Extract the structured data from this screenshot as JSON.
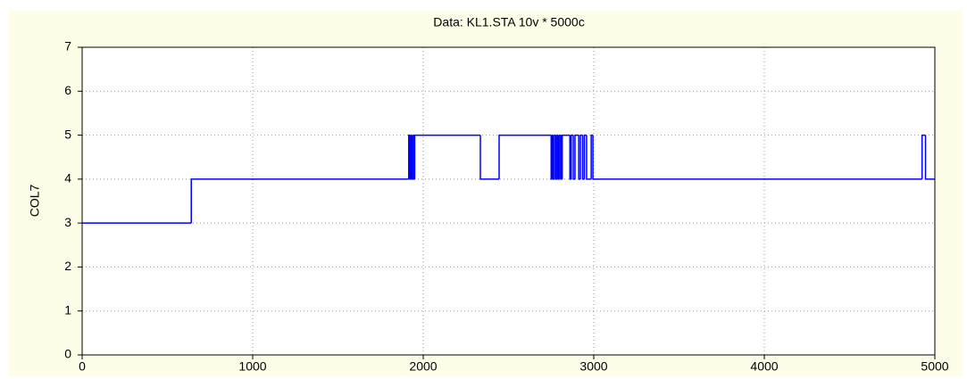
{
  "chart_data": {
    "type": "line",
    "step": "post",
    "title": "Data: KL1.STA 10v * 5000c",
    "y_label": "COL7",
    "color": "#0000ff",
    "x": [
      0,
      640,
      1915,
      1922,
      1928,
      1935,
      1942,
      1947,
      1950,
      2335,
      2445,
      2750,
      2756,
      2762,
      2770,
      2778,
      2785,
      2792,
      2800,
      2808,
      2815,
      2860,
      2868,
      2880,
      2890,
      2912,
      2922,
      2935,
      2945,
      2958,
      2985,
      2995,
      4925,
      4945,
      5000
    ],
    "values": [
      3,
      4,
      5,
      4,
      5,
      4,
      5,
      4,
      5,
      4,
      5,
      4,
      5,
      4,
      5,
      4,
      5,
      4,
      5,
      4,
      5,
      4,
      5,
      4,
      5,
      4,
      5,
      4,
      5,
      4,
      5,
      4,
      5,
      4,
      4
    ],
    "xlim": [
      0,
      5000
    ],
    "xticks": [
      0,
      1000,
      2000,
      3000,
      4000,
      5000
    ],
    "ylim": [
      0,
      7
    ],
    "yticks": [
      0,
      1,
      2,
      3,
      4,
      5,
      6,
      7
    ],
    "grid": true
  }
}
